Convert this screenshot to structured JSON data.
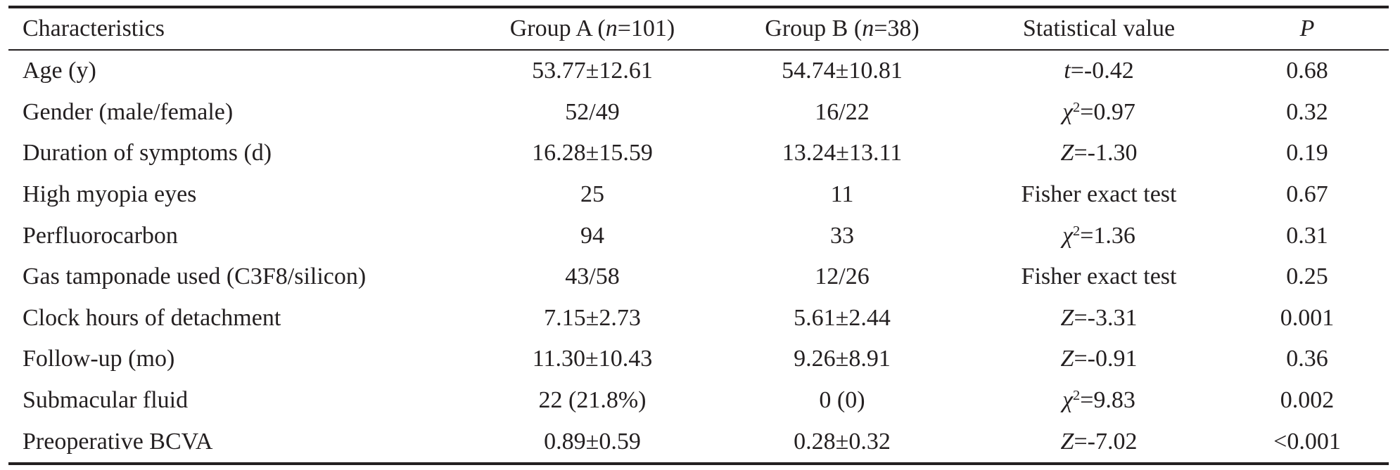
{
  "table": {
    "headers": {
      "characteristics": "Characteristics",
      "group_a_label": "Group A (",
      "group_a_n": "n",
      "group_a_value": "=101)",
      "group_b_label": "Group B (",
      "group_b_n": "n",
      "group_b_value": "=38)",
      "statistical_value": "Statistical value",
      "p": "P"
    },
    "rows": [
      {
        "characteristic": "Age (y)",
        "group_a": "53.77±12.61",
        "group_b": "54.74±10.81",
        "stat_symbol": "t",
        "stat_sup": "",
        "stat_value": "=-0.42",
        "p": "0.68"
      },
      {
        "characteristic": "Gender (male/female)",
        "group_a": "52/49",
        "group_b": "16/22",
        "stat_symbol": "χ",
        "stat_sup": "2",
        "stat_value": "=0.97",
        "p": "0.32"
      },
      {
        "characteristic": "Duration of symptoms (d)",
        "group_a": "16.28±15.59",
        "group_b": "13.24±13.11",
        "stat_symbol": "Z",
        "stat_sup": "",
        "stat_value": "=-1.30",
        "p": "0.19"
      },
      {
        "characteristic": "High myopia eyes",
        "group_a": "25",
        "group_b": "11",
        "stat_symbol": "",
        "stat_sup": "",
        "stat_value": "Fisher exact test",
        "p": "0.67"
      },
      {
        "characteristic": "Perfluorocarbon",
        "group_a": "94",
        "group_b": "33",
        "stat_symbol": "χ",
        "stat_sup": "2",
        "stat_value": "=1.36",
        "p": "0.31"
      },
      {
        "characteristic": "Gas tamponade used (C3F8/silicon)",
        "group_a": "43/58",
        "group_b": "12/26",
        "stat_symbol": "",
        "stat_sup": "",
        "stat_value": "Fisher exact test",
        "p": "0.25"
      },
      {
        "characteristic": "Clock hours of detachment",
        "group_a": "7.15±2.73",
        "group_b": "5.61±2.44",
        "stat_symbol": "Z",
        "stat_sup": "",
        "stat_value": "=-3.31",
        "p": "0.001"
      },
      {
        "characteristic": "Follow-up (mo)",
        "group_a": "11.30±10.43",
        "group_b": "9.26±8.91",
        "stat_symbol": "Z",
        "stat_sup": "",
        "stat_value": "=-0.91",
        "p": "0.36"
      },
      {
        "characteristic": "Submacular fluid",
        "group_a": "22 (21.8%)",
        "group_b": "0 (0)",
        "stat_symbol": "χ",
        "stat_sup": "2",
        "stat_value": "=9.83",
        "p": "0.002"
      },
      {
        "characteristic": "Preoperative BCVA",
        "group_a": "0.89±0.59",
        "group_b": "0.28±0.32",
        "stat_symbol": "Z",
        "stat_sup": "",
        "stat_value": "=-7.02",
        "p": "<0.001"
      }
    ]
  }
}
